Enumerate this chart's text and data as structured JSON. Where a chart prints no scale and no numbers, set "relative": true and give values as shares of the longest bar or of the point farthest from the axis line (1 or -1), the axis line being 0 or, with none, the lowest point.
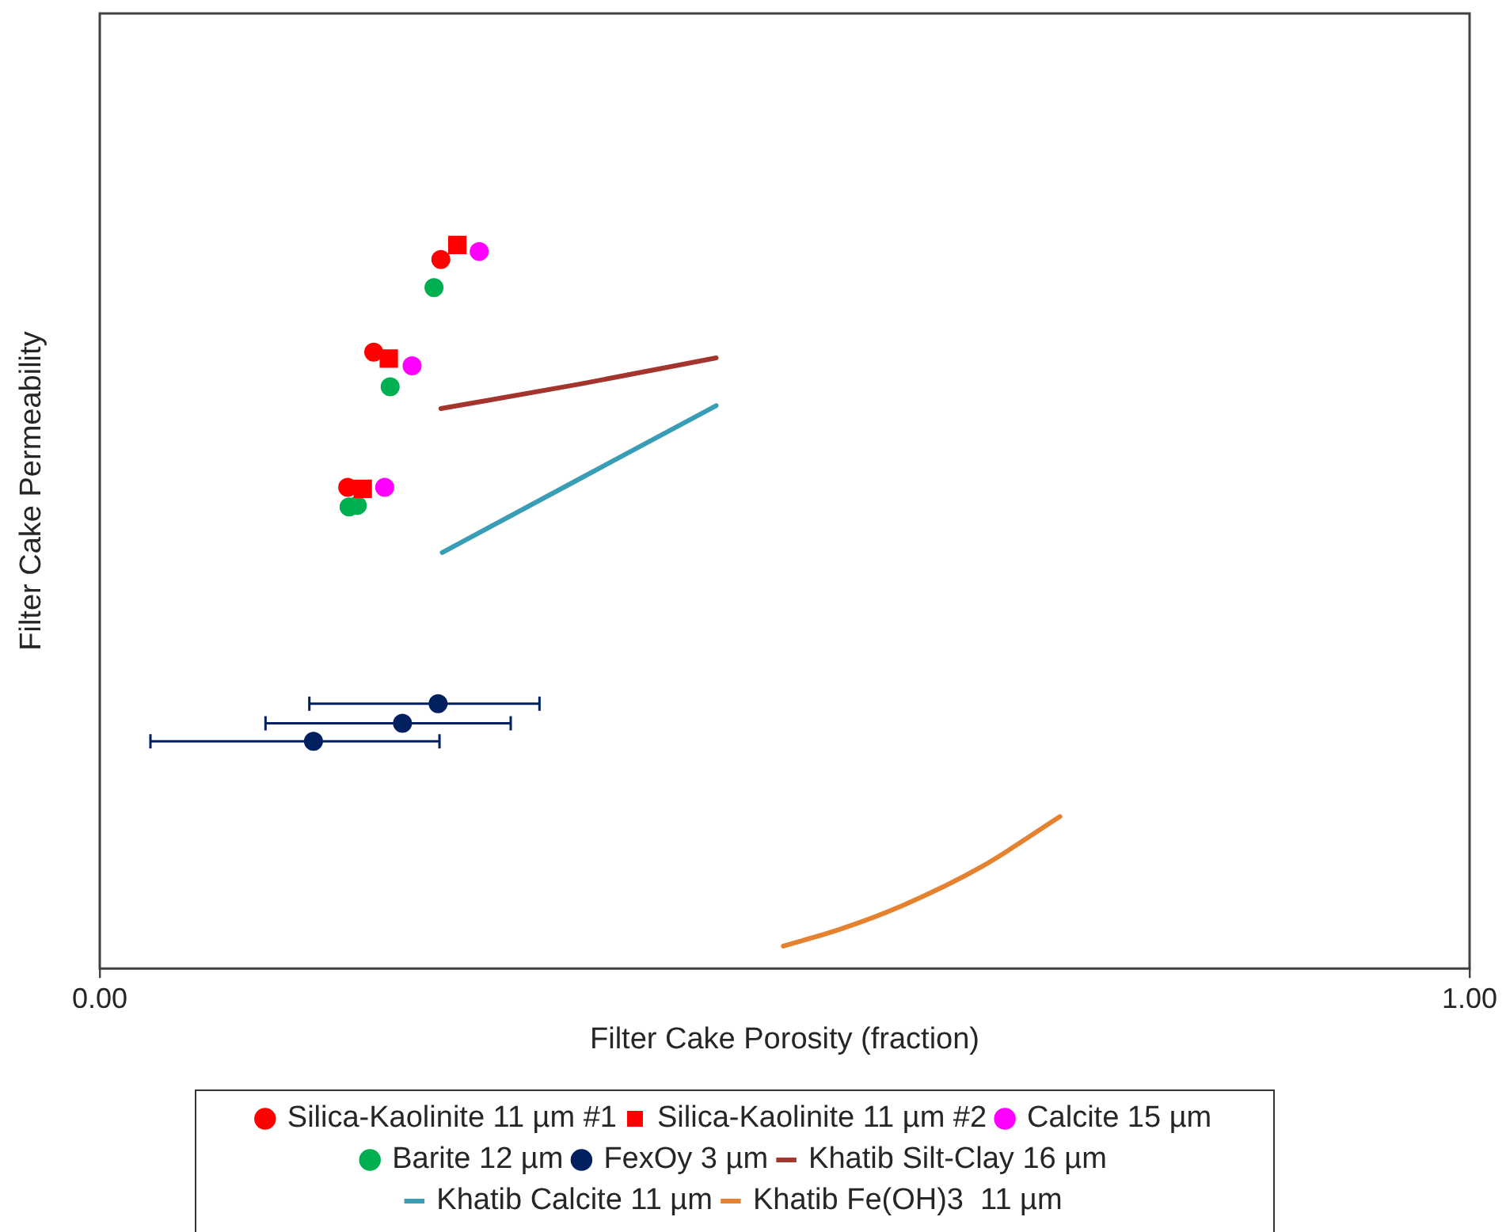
{
  "chart_data": {
    "type": "scatter",
    "xlabel": "Filter Cake Porosity (fraction)",
    "ylabel": "Filter Cake Permeability",
    "xlim": [
      0,
      1
    ],
    "xticks": [
      {
        "value": 0,
        "label": "0.00"
      },
      {
        "value": 1,
        "label": "1.00"
      }
    ],
    "relative": true,
    "legend": "bottom",
    "series": [
      {
        "name": "Silica-Kaolinite 11 µm #1",
        "type": "scatter",
        "marker": "circle",
        "color": "#ff0000",
        "x": [
          0.249,
          0.2,
          0.181
        ],
        "values": [
          0.98,
          0.852,
          0.665
        ]
      },
      {
        "name": "Silica-Kaolinite 11 µm #2",
        "type": "scatter",
        "marker": "square",
        "color": "#ff0000",
        "x": [
          0.261,
          0.211,
          0.192
        ],
        "values": [
          1.0,
          0.843,
          0.663
        ]
      },
      {
        "name": "Calcite 15 µm",
        "type": "scatter",
        "marker": "circle",
        "color": "#ff00ff",
        "x": [
          0.277,
          0.228,
          0.208
        ],
        "values": [
          0.991,
          0.833,
          0.665
        ]
      },
      {
        "name": "Barite 12 µm",
        "type": "scatter",
        "marker": "circle",
        "color": "#00b050",
        "x": [
          0.244,
          0.212,
          0.182,
          0.188
        ],
        "values": [
          0.941,
          0.804,
          0.638,
          0.64
        ]
      },
      {
        "name": "FexOy 3 µm",
        "type": "scatter",
        "marker": "circle",
        "color": "#002060",
        "x": [
          0.247,
          0.221,
          0.156
        ],
        "values": [
          0.366,
          0.339,
          0.314
        ],
        "xerrors": [
          [
            0.153,
            0.321
          ],
          [
            0.121,
            0.3
          ],
          [
            0.037,
            0.248
          ]
        ]
      },
      {
        "name": "Khatib Silt-Clay 16 µm",
        "type": "line",
        "marker": "none",
        "color": "#a3352e",
        "x": [
          0.249,
          0.351,
          0.45
        ],
        "values": [
          0.774,
          0.808,
          0.844
        ]
      },
      {
        "name": "Khatib Calcite 11 µm",
        "type": "line",
        "marker": "none",
        "color": "#3a9db6",
        "x": [
          0.25,
          0.45
        ],
        "values": [
          0.575,
          0.778
        ]
      },
      {
        "name": "Khatib Fe(OH)3  11 µm",
        "type": "line",
        "marker": "none",
        "color": "#e5822f",
        "x": [
          0.499,
          0.54,
          0.586,
          0.644,
          0.701
        ],
        "values": [
          0.031,
          0.054,
          0.087,
          0.141,
          0.21
        ]
      }
    ]
  }
}
